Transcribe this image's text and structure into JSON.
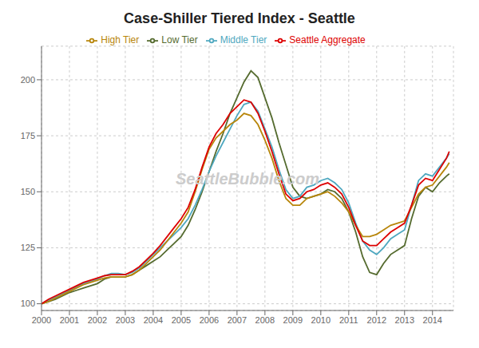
{
  "chart_data": {
    "type": "line",
    "title": "Case-Shiller Tiered Index - Seattle",
    "annotations": [
      "SeattleBubble.com"
    ],
    "x": [
      2000,
      2000.25,
      2000.5,
      2000.75,
      2001,
      2001.25,
      2001.5,
      2001.75,
      2002,
      2002.25,
      2002.5,
      2002.75,
      2003,
      2003.25,
      2003.5,
      2003.75,
      2004,
      2004.25,
      2004.5,
      2004.75,
      2005,
      2005.25,
      2005.5,
      2005.75,
      2006,
      2006.25,
      2006.5,
      2006.75,
      2007,
      2007.25,
      2007.5,
      2007.75,
      2008,
      2008.25,
      2008.5,
      2008.75,
      2009,
      2009.25,
      2009.5,
      2009.75,
      2010,
      2010.25,
      2010.5,
      2010.75,
      2011,
      2011.25,
      2011.5,
      2011.75,
      2012,
      2012.25,
      2012.5,
      2012.75,
      2013,
      2013.25,
      2013.5,
      2013.75,
      2014,
      2014.25,
      2014.5,
      2014.6
    ],
    "series": [
      {
        "name": "Low Tier",
        "color": "#556B2F",
        "values": [
          100,
          101,
          102,
          103.5,
          105,
          106,
          107,
          108,
          109,
          111,
          112,
          112,
          112,
          113,
          115,
          117,
          119,
          121,
          124,
          127,
          130,
          135,
          142,
          150,
          159,
          168,
          176,
          185,
          192,
          199,
          204,
          201,
          192,
          183,
          172,
          162,
          152,
          148,
          147,
          148,
          149,
          151,
          150,
          147,
          141,
          132,
          121,
          114,
          113,
          118,
          122,
          124,
          126,
          138,
          148,
          152,
          150,
          154,
          157,
          158
        ]
      },
      {
        "name": "Middle Tier",
        "color": "#4FA8C0",
        "values": [
          100,
          101.5,
          103,
          104.5,
          106,
          107.5,
          109,
          110,
          111,
          112.5,
          113.5,
          113.5,
          113,
          114,
          116,
          119,
          122,
          125,
          128,
          131,
          134,
          138,
          144,
          151,
          159,
          166,
          172,
          178,
          184,
          189,
          190,
          186,
          178,
          170,
          160,
          151,
          147,
          148,
          152,
          153,
          155,
          156,
          154,
          151,
          145,
          136,
          128,
          124,
          122,
          125,
          129,
          131,
          133,
          144,
          155,
          158,
          157,
          161,
          165,
          167
        ]
      },
      {
        "name": "High Tier",
        "color": "#B8860B",
        "values": [
          100,
          101,
          102.5,
          104,
          105.5,
          107,
          108.5,
          109.5,
          110.5,
          111.5,
          112,
          112,
          112,
          113,
          115,
          118,
          121,
          124,
          128,
          132,
          136,
          141,
          150,
          160,
          169,
          174,
          177,
          180,
          182,
          185,
          184,
          180,
          173,
          165,
          155,
          147,
          144,
          144,
          147,
          148,
          149,
          150,
          148,
          145,
          141,
          135,
          130,
          130,
          131,
          133,
          135,
          136,
          137,
          143,
          149,
          152,
          153,
          157,
          161,
          163
        ]
      },
      {
        "name": "Seattle Aggregate",
        "color": "#DD0000",
        "values": [
          100,
          102,
          103.5,
          105,
          106.5,
          108,
          109.5,
          110.5,
          111.5,
          112.5,
          113,
          113,
          113,
          114.5,
          116.5,
          119.5,
          122.5,
          126,
          130,
          134,
          138,
          143,
          151,
          161,
          170,
          176,
          180,
          185,
          188,
          191,
          190,
          185,
          177,
          168,
          158,
          149,
          146,
          147,
          150,
          151,
          153,
          154,
          152,
          149,
          143,
          135,
          128,
          126,
          126,
          129,
          132,
          134,
          136,
          144,
          153,
          156,
          155,
          160,
          165,
          168
        ]
      }
    ],
    "xlim": [
      2000.0,
      2014.75
    ],
    "xticks": [
      2000,
      2001,
      2002,
      2003,
      2004,
      2005,
      2006,
      2007,
      2008,
      2009,
      2010,
      2011,
      2012,
      2013,
      2014
    ],
    "ylim": [
      97,
      215
    ],
    "yticks": [
      100,
      125,
      150,
      175,
      200
    ],
    "grid": true,
    "legend": "top"
  }
}
